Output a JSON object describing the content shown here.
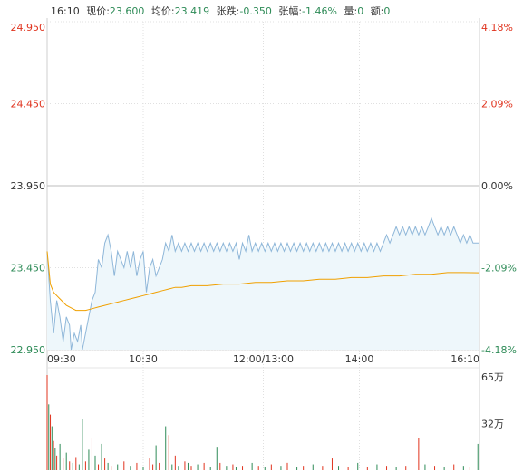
{
  "header": {
    "time": "16:10",
    "price_label": "现价:",
    "price": "23.600",
    "avg_label": "均价:",
    "avg": "23.419",
    "change_label": "张跌:",
    "change": "-0.350",
    "pct_label": "张幅:",
    "pct": "-1.46%",
    "volume_label": "量:",
    "volume": "0",
    "amount_label": "额:",
    "amount": "0"
  },
  "colors": {
    "up": "#e0331e",
    "down": "#2e8b57",
    "price_line": "#8fb7d9",
    "price_fill": "#eef7fb",
    "avg_line": "#f0a000",
    "grid": "#e0e0e0",
    "ref": "#bdbdbd"
  },
  "chart_data": [
    {
      "type": "line",
      "name": "price",
      "y_ticks_left": [
        "24.950",
        "24.450",
        "23.950",
        "23.450",
        "22.950"
      ],
      "y_ticks_right": [
        "4.18%",
        "2.09%",
        "0.00%",
        "-2.09%",
        "-4.18%"
      ],
      "x_ticks": [
        "09:30",
        "10:30",
        "12:00/13:00",
        "14:00",
        "16:10"
      ],
      "ylim": [
        22.95,
        24.95
      ],
      "reference": 23.95,
      "x_max": 270,
      "series": [
        {
          "values": [
            [
              0,
              23.55
            ],
            [
              2,
              23.25
            ],
            [
              4,
              23.05
            ],
            [
              6,
              23.25
            ],
            [
              8,
              23.15
            ],
            [
              10,
              23.0
            ],
            [
              12,
              23.15
            ],
            [
              14,
              23.1
            ],
            [
              15,
              22.95
            ],
            [
              17,
              23.05
            ],
            [
              19,
              23.0
            ],
            [
              21,
              23.1
            ],
            [
              22,
              22.95
            ],
            [
              24,
              23.05
            ],
            [
              26,
              23.15
            ],
            [
              28,
              23.25
            ],
            [
              30,
              23.3
            ],
            [
              32,
              23.5
            ],
            [
              34,
              23.45
            ],
            [
              36,
              23.6
            ],
            [
              38,
              23.65
            ],
            [
              40,
              23.55
            ],
            [
              42,
              23.4
            ],
            [
              44,
              23.55
            ],
            [
              46,
              23.5
            ],
            [
              48,
              23.45
            ],
            [
              50,
              23.55
            ],
            [
              52,
              23.45
            ],
            [
              54,
              23.55
            ],
            [
              56,
              23.4
            ],
            [
              58,
              23.5
            ],
            [
              60,
              23.55
            ],
            [
              62,
              23.3
            ],
            [
              64,
              23.45
            ],
            [
              66,
              23.5
            ],
            [
              68,
              23.4
            ],
            [
              70,
              23.45
            ],
            [
              72,
              23.5
            ],
            [
              74,
              23.6
            ],
            [
              76,
              23.55
            ],
            [
              78,
              23.65
            ],
            [
              80,
              23.55
            ],
            [
              82,
              23.6
            ],
            [
              84,
              23.55
            ],
            [
              86,
              23.6
            ],
            [
              88,
              23.55
            ],
            [
              90,
              23.6
            ],
            [
              92,
              23.55
            ],
            [
              94,
              23.6
            ],
            [
              96,
              23.55
            ],
            [
              98,
              23.6
            ],
            [
              100,
              23.55
            ],
            [
              102,
              23.6
            ],
            [
              104,
              23.55
            ],
            [
              106,
              23.6
            ],
            [
              108,
              23.55
            ],
            [
              110,
              23.6
            ],
            [
              112,
              23.55
            ],
            [
              114,
              23.6
            ],
            [
              116,
              23.55
            ],
            [
              118,
              23.6
            ],
            [
              120,
              23.5
            ],
            [
              122,
              23.6
            ],
            [
              124,
              23.55
            ],
            [
              126,
              23.65
            ],
            [
              128,
              23.55
            ],
            [
              130,
              23.6
            ],
            [
              132,
              23.55
            ],
            [
              134,
              23.6
            ],
            [
              136,
              23.55
            ],
            [
              138,
              23.6
            ],
            [
              140,
              23.55
            ],
            [
              142,
              23.6
            ],
            [
              144,
              23.55
            ],
            [
              146,
              23.6
            ],
            [
              148,
              23.55
            ],
            [
              150,
              23.6
            ],
            [
              152,
              23.55
            ],
            [
              154,
              23.6
            ],
            [
              156,
              23.55
            ],
            [
              158,
              23.6
            ],
            [
              160,
              23.55
            ],
            [
              162,
              23.6
            ],
            [
              164,
              23.55
            ],
            [
              166,
              23.6
            ],
            [
              168,
              23.55
            ],
            [
              170,
              23.6
            ],
            [
              172,
              23.55
            ],
            [
              174,
              23.6
            ],
            [
              176,
              23.55
            ],
            [
              178,
              23.6
            ],
            [
              180,
              23.55
            ],
            [
              182,
              23.6
            ],
            [
              184,
              23.55
            ],
            [
              186,
              23.6
            ],
            [
              188,
              23.55
            ],
            [
              190,
              23.6
            ],
            [
              192,
              23.55
            ],
            [
              194,
              23.6
            ],
            [
              196,
              23.55
            ],
            [
              198,
              23.6
            ],
            [
              200,
              23.55
            ],
            [
              202,
              23.6
            ],
            [
              204,
              23.55
            ],
            [
              206,
              23.6
            ],
            [
              208,
              23.55
            ],
            [
              210,
              23.6
            ],
            [
              212,
              23.65
            ],
            [
              214,
              23.6
            ],
            [
              216,
              23.65
            ],
            [
              218,
              23.7
            ],
            [
              220,
              23.65
            ],
            [
              222,
              23.7
            ],
            [
              224,
              23.65
            ],
            [
              226,
              23.7
            ],
            [
              228,
              23.65
            ],
            [
              230,
              23.7
            ],
            [
              232,
              23.65
            ],
            [
              234,
              23.7
            ],
            [
              236,
              23.65
            ],
            [
              238,
              23.7
            ],
            [
              240,
              23.75
            ],
            [
              242,
              23.7
            ],
            [
              244,
              23.65
            ],
            [
              246,
              23.7
            ],
            [
              248,
              23.65
            ],
            [
              250,
              23.7
            ],
            [
              252,
              23.65
            ],
            [
              254,
              23.7
            ],
            [
              256,
              23.65
            ],
            [
              258,
              23.6
            ],
            [
              260,
              23.65
            ],
            [
              262,
              23.6
            ],
            [
              264,
              23.65
            ],
            [
              266,
              23.6
            ],
            [
              268,
              23.6
            ],
            [
              270,
              23.6
            ]
          ]
        },
        {
          "name": "均价",
          "values": [
            [
              0,
              23.55
            ],
            [
              2,
              23.35
            ],
            [
              4,
              23.3
            ],
            [
              6,
              23.28
            ],
            [
              8,
              23.26
            ],
            [
              10,
              23.24
            ],
            [
              12,
              23.22
            ],
            [
              14,
              23.21
            ],
            [
              16,
              23.2
            ],
            [
              18,
              23.19
            ],
            [
              20,
              23.19
            ],
            [
              24,
              23.19
            ],
            [
              28,
              23.2
            ],
            [
              32,
              23.21
            ],
            [
              36,
              23.22
            ],
            [
              40,
              23.23
            ],
            [
              44,
              23.24
            ],
            [
              48,
              23.25
            ],
            [
              52,
              23.26
            ],
            [
              56,
              23.27
            ],
            [
              60,
              23.28
            ],
            [
              64,
              23.29
            ],
            [
              68,
              23.3
            ],
            [
              72,
              23.31
            ],
            [
              76,
              23.32
            ],
            [
              80,
              23.33
            ],
            [
              84,
              23.33
            ],
            [
              90,
              23.34
            ],
            [
              100,
              23.34
            ],
            [
              110,
              23.35
            ],
            [
              120,
              23.35
            ],
            [
              130,
              23.36
            ],
            [
              140,
              23.36
            ],
            [
              150,
              23.37
            ],
            [
              160,
              23.37
            ],
            [
              170,
              23.38
            ],
            [
              180,
              23.38
            ],
            [
              190,
              23.39
            ],
            [
              200,
              23.39
            ],
            [
              210,
              23.4
            ],
            [
              220,
              23.4
            ],
            [
              230,
              23.41
            ],
            [
              240,
              23.41
            ],
            [
              250,
              23.42
            ],
            [
              260,
              23.42
            ],
            [
              270,
              23.419
            ]
          ]
        }
      ]
    },
    {
      "type": "bar",
      "name": "volume",
      "y_ticks": [
        "65万",
        "32万"
      ],
      "ylim": [
        0,
        65
      ],
      "values": [
        [
          0,
          65,
          "up"
        ],
        [
          1,
          45,
          "down"
        ],
        [
          2,
          38,
          "up"
        ],
        [
          3,
          30,
          "down"
        ],
        [
          4,
          20,
          "up"
        ],
        [
          5,
          15,
          "down"
        ],
        [
          6,
          10,
          "up"
        ],
        [
          8,
          18,
          "down"
        ],
        [
          10,
          8,
          "up"
        ],
        [
          12,
          12,
          "down"
        ],
        [
          14,
          6,
          "up"
        ],
        [
          16,
          5,
          "down"
        ],
        [
          18,
          9,
          "up"
        ],
        [
          20,
          4,
          "down"
        ],
        [
          22,
          35,
          "down"
        ],
        [
          24,
          6,
          "up"
        ],
        [
          26,
          14,
          "down"
        ],
        [
          28,
          22,
          "up"
        ],
        [
          30,
          10,
          "down"
        ],
        [
          32,
          4,
          "up"
        ],
        [
          34,
          18,
          "down"
        ],
        [
          36,
          8,
          "up"
        ],
        [
          38,
          5,
          "down"
        ],
        [
          40,
          3,
          "up"
        ],
        [
          44,
          4,
          "down"
        ],
        [
          48,
          6,
          "up"
        ],
        [
          52,
          3,
          "down"
        ],
        [
          56,
          5,
          "up"
        ],
        [
          60,
          2,
          "down"
        ],
        [
          64,
          8,
          "up"
        ],
        [
          66,
          4,
          "up"
        ],
        [
          68,
          17,
          "down"
        ],
        [
          70,
          5,
          "up"
        ],
        [
          74,
          30,
          "down"
        ],
        [
          76,
          24,
          "up"
        ],
        [
          78,
          4,
          "down"
        ],
        [
          80,
          10,
          "up"
        ],
        [
          82,
          3,
          "down"
        ],
        [
          86,
          6,
          "up"
        ],
        [
          88,
          5,
          "down"
        ],
        [
          90,
          3,
          "up"
        ],
        [
          94,
          4,
          "down"
        ],
        [
          98,
          5,
          "up"
        ],
        [
          102,
          2,
          "down"
        ],
        [
          106,
          16,
          "down"
        ],
        [
          108,
          5,
          "up"
        ],
        [
          112,
          3,
          "down"
        ],
        [
          116,
          4,
          "up"
        ],
        [
          118,
          2,
          "down"
        ],
        [
          122,
          3,
          "up"
        ],
        [
          128,
          5,
          "down"
        ],
        [
          132,
          3,
          "up"
        ],
        [
          136,
          2,
          "down"
        ],
        [
          140,
          4,
          "up"
        ],
        [
          146,
          3,
          "down"
        ],
        [
          150,
          5,
          "up"
        ],
        [
          156,
          2,
          "down"
        ],
        [
          160,
          3,
          "up"
        ],
        [
          166,
          4,
          "down"
        ],
        [
          172,
          3,
          "up"
        ],
        [
          178,
          8,
          "up"
        ],
        [
          182,
          3,
          "down"
        ],
        [
          188,
          2,
          "up"
        ],
        [
          194,
          5,
          "down"
        ],
        [
          200,
          2,
          "up"
        ],
        [
          206,
          4,
          "down"
        ],
        [
          212,
          3,
          "up"
        ],
        [
          218,
          2,
          "down"
        ],
        [
          224,
          3,
          "up"
        ],
        [
          232,
          22,
          "up"
        ],
        [
          236,
          4,
          "down"
        ],
        [
          242,
          3,
          "up"
        ],
        [
          248,
          2,
          "down"
        ],
        [
          254,
          4,
          "up"
        ],
        [
          260,
          3,
          "down"
        ],
        [
          264,
          2,
          "up"
        ],
        [
          269,
          18,
          "down"
        ]
      ]
    }
  ]
}
